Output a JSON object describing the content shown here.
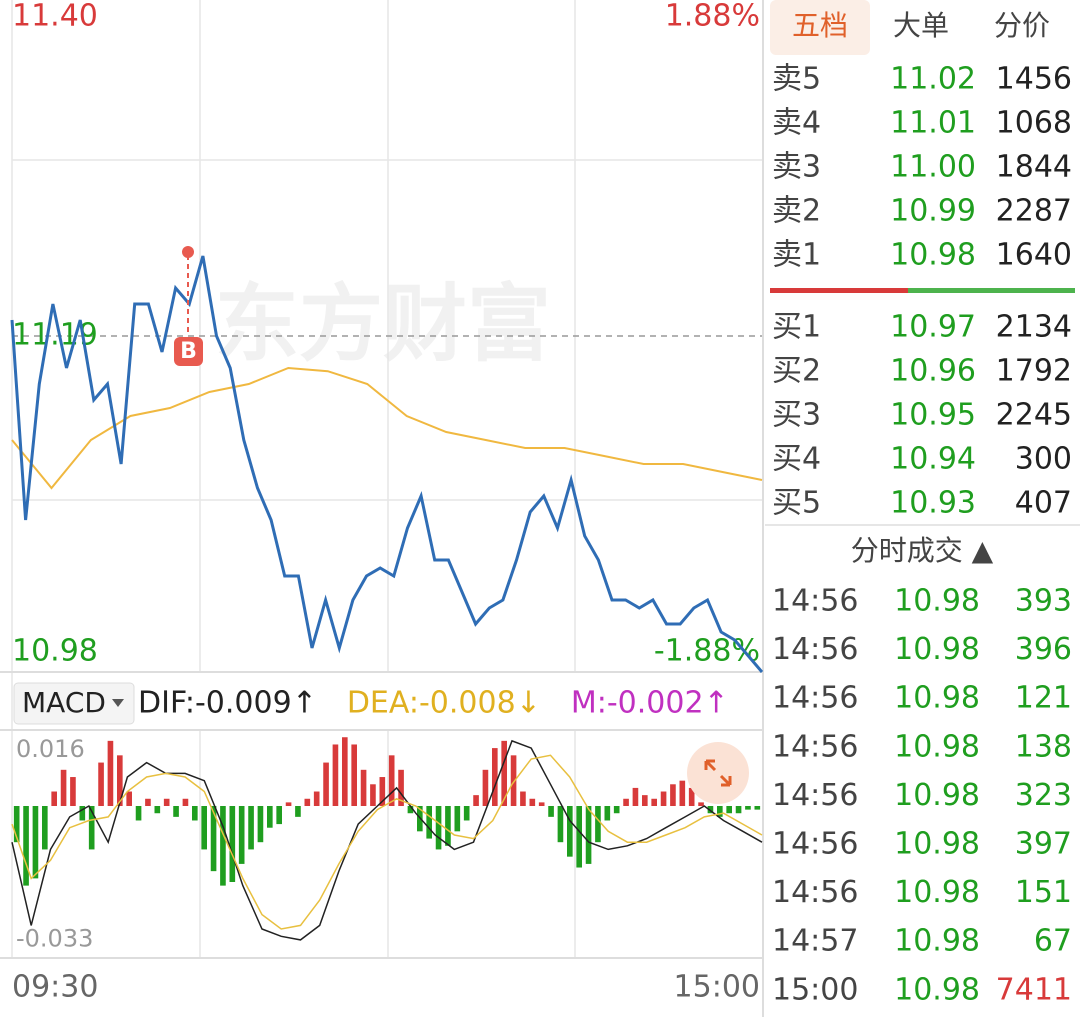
{
  "chart_data": [
    {
      "type": "line",
      "watermark": "东方财富",
      "trade_marker": "B",
      "ylim": [
        10.98,
        11.4
      ],
      "yticks": [
        {
          "value": 11.4,
          "label": "11.40"
        },
        {
          "value": 11.19,
          "label": "11.19"
        },
        {
          "value": 10.98,
          "label": "10.98"
        }
      ],
      "y2lim": [
        -1.88,
        1.88
      ],
      "y2ticks": [
        {
          "value": 1.88,
          "label": "1.88%"
        },
        {
          "value": -1.88,
          "label": "-1.88%"
        }
      ],
      "series": [
        {
          "color": "#2f6db5",
          "values": [
            11.2,
            11.075,
            11.16,
            11.21,
            11.17,
            11.2,
            11.15,
            11.16,
            11.11,
            11.21,
            11.21,
            11.18,
            11.22,
            11.21,
            11.24,
            11.19,
            11.17,
            11.125,
            11.095,
            11.075,
            11.04,
            11.04,
            10.995,
            11.025,
            10.995,
            11.025,
            11.04,
            11.045,
            11.04,
            11.07,
            11.09,
            11.05,
            11.05,
            11.03,
            11.01,
            11.02,
            11.025,
            11.05,
            11.08,
            11.09,
            11.07,
            11.1,
            11.065,
            11.05,
            11.025,
            11.025,
            11.02,
            11.025,
            11.01,
            11.01,
            11.02,
            11.025,
            11.005,
            11.0,
            10.99,
            10.98
          ]
        },
        {
          "color": "#f0b840",
          "values": [
            11.125,
            11.095,
            11.125,
            11.14,
            11.145,
            11.155,
            11.16,
            11.17,
            11.168,
            11.16,
            11.14,
            11.13,
            11.125,
            11.12,
            11.12,
            11.115,
            11.11,
            11.11,
            11.105,
            11.1
          ]
        }
      ]
    },
    {
      "type": "macd",
      "indicator": "MACD",
      "header_labels": [
        {
          "text": "DIF:-0.009↑",
          "color": "#222222"
        },
        {
          "text": "DEA:-0.008↓",
          "color": "#e0b020"
        },
        {
          "text": "M:-0.002↑",
          "color": "#c030c0"
        }
      ],
      "ylim": [
        -0.042,
        0.021
      ],
      "yticks": [
        {
          "value": 0.016,
          "label": "0.016"
        },
        {
          "value": -0.033,
          "label": "-0.033"
        }
      ],
      "x_labels": [
        "09:30",
        "15:00"
      ],
      "bars": {
        "up_color": "#d83a3a",
        "down_color": "#1f9e1f",
        "values": [
          -0.01,
          -0.022,
          -0.02,
          -0.012,
          0.004,
          0.01,
          0.008,
          -0.004,
          -0.012,
          0.012,
          0.018,
          0.014,
          0.004,
          -0.004,
          0.002,
          -0.002,
          0.002,
          -0.003,
          0.002,
          -0.004,
          -0.012,
          -0.018,
          -0.022,
          -0.021,
          -0.016,
          -0.012,
          -0.01,
          -0.006,
          -0.005,
          0.001,
          -0.003,
          0.002,
          0.004,
          0.012,
          0.017,
          0.019,
          0.017,
          0.01,
          0.006,
          0.008,
          0.014,
          0.01,
          -0.002,
          -0.007,
          -0.009,
          -0.012,
          -0.011,
          -0.007,
          -0.004,
          0.003,
          0.01,
          0.016,
          0.018,
          0.014,
          0.004,
          0.002,
          0.001,
          -0.003,
          -0.01,
          -0.014,
          -0.017,
          -0.016,
          -0.01,
          -0.004,
          -0.002,
          0.002,
          0.005,
          0.003,
          0.002,
          0.004,
          0.006,
          0.007,
          0.005,
          0.001,
          -0.002,
          -0.003,
          -0.002,
          -0.002,
          -0.001,
          -0.001
        ]
      },
      "series": [
        {
          "color": "#222222",
          "values": [
            -0.01,
            -0.033,
            -0.012,
            -0.003,
            0.0,
            -0.01,
            0.008,
            0.012,
            0.009,
            0.009,
            0.007,
            -0.006,
            -0.022,
            -0.034,
            -0.036,
            -0.037,
            -0.033,
            -0.018,
            -0.005,
            0.0,
            0.005,
            -0.002,
            -0.008,
            -0.012,
            -0.01,
            0.004,
            0.018,
            0.016,
            0.006,
            -0.004,
            -0.01,
            -0.012,
            -0.011,
            -0.009,
            -0.006,
            -0.003,
            0.0,
            -0.004,
            -0.007,
            -0.01
          ]
        },
        {
          "color": "#e8c040",
          "values": [
            -0.005,
            -0.02,
            -0.015,
            -0.006,
            -0.004,
            -0.003,
            0.004,
            0.008,
            0.009,
            0.008,
            0.004,
            -0.008,
            -0.02,
            -0.03,
            -0.034,
            -0.033,
            -0.026,
            -0.016,
            -0.007,
            -0.001,
            0.002,
            0.0,
            -0.004,
            -0.008,
            -0.009,
            -0.004,
            0.006,
            0.013,
            0.014,
            0.008,
            -0.001,
            -0.007,
            -0.01,
            -0.01,
            -0.008,
            -0.006,
            -0.003,
            -0.002,
            -0.005,
            -0.008
          ]
        }
      ]
    }
  ],
  "tabs": [
    "五档",
    "大单",
    "分价"
  ],
  "order_book": {
    "asks": [
      [
        "卖5",
        "11.02",
        "1456"
      ],
      [
        "卖4",
        "11.01",
        "1068"
      ],
      [
        "卖3",
        "11.00",
        "1844"
      ],
      [
        "卖2",
        "10.99",
        "2287"
      ],
      [
        "卖1",
        "10.98",
        "1640"
      ]
    ],
    "bids": [
      [
        "买1",
        "10.97",
        "2134"
      ],
      [
        "买2",
        "10.96",
        "1792"
      ],
      [
        "买3",
        "10.95",
        "2245"
      ],
      [
        "买4",
        "10.94",
        "300"
      ],
      [
        "买5",
        "10.93",
        "407"
      ]
    ]
  },
  "trades": {
    "title": "分时成交 ▲",
    "rows": [
      {
        "time": "14:56",
        "price": "10.98",
        "volume": "393",
        "color": "#1f9e1f"
      },
      {
        "time": "14:56",
        "price": "10.98",
        "volume": "396",
        "color": "#1f9e1f"
      },
      {
        "time": "14:56",
        "price": "10.98",
        "volume": "121",
        "color": "#1f9e1f"
      },
      {
        "time": "14:56",
        "price": "10.98",
        "volume": "138",
        "color": "#1f9e1f"
      },
      {
        "time": "14:56",
        "price": "10.98",
        "volume": "323",
        "color": "#1f9e1f"
      },
      {
        "time": "14:56",
        "price": "10.98",
        "volume": "397",
        "color": "#1f9e1f"
      },
      {
        "time": "14:56",
        "price": "10.98",
        "volume": "151",
        "color": "#1f9e1f"
      },
      {
        "time": "14:57",
        "price": "10.98",
        "volume": "67",
        "color": "#1f9e1f"
      },
      {
        "time": "15:00",
        "price": "10.98",
        "volume": "7411",
        "color": "#d83a3a"
      }
    ]
  }
}
